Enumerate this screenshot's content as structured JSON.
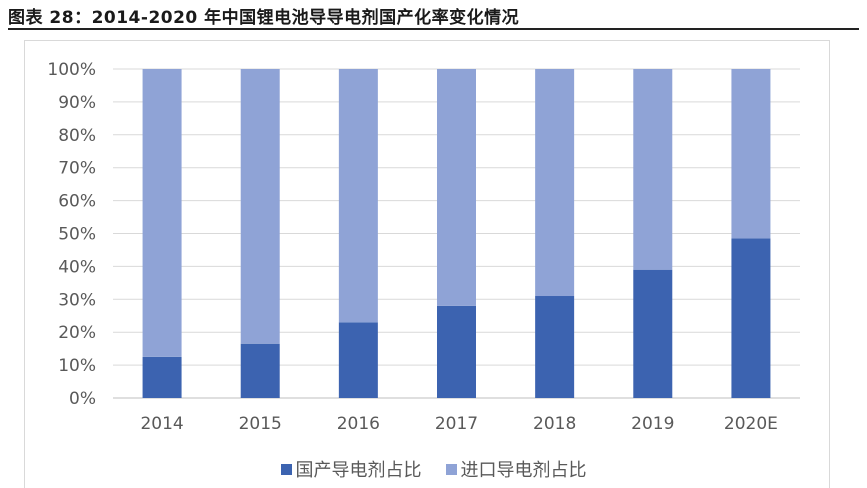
{
  "figure": {
    "title": "图表 28：2014-2020 年中国锂电池导导电剂国产化率变化情况"
  },
  "colors": {
    "domestic": "#3c63b0",
    "imported": "#8fa3d6",
    "grid": "#d9d9d9"
  },
  "chart_data": {
    "type": "bar",
    "stacked": true,
    "categories": [
      "2014",
      "2015",
      "2016",
      "2017",
      "2018",
      "2019",
      "2020E"
    ],
    "series": [
      {
        "name": "国产导电剂占比",
        "values": [
          12.5,
          16.5,
          23,
          28,
          31,
          39,
          48.5
        ]
      },
      {
        "name": "进口导电剂占比",
        "values": [
          87.5,
          83.5,
          77,
          72,
          69,
          61,
          51.5
        ]
      }
    ],
    "ylim": [
      0,
      100
    ],
    "yticks": [
      "0%",
      "10%",
      "20%",
      "30%",
      "40%",
      "50%",
      "60%",
      "70%",
      "80%",
      "90%",
      "100%"
    ],
    "grid": true,
    "legend_position": "bottom"
  }
}
